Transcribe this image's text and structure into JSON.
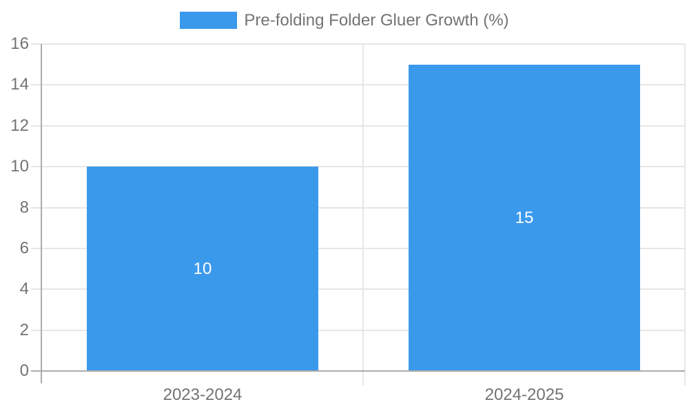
{
  "chart_data": {
    "type": "bar",
    "title": "",
    "xlabel": "",
    "ylabel": "",
    "categories": [
      "2023-2024",
      "2024-2025"
    ],
    "values": [
      10,
      15
    ],
    "data_labels": [
      "10",
      "15"
    ],
    "series_name": "Pre-folding Folder Gluer Growth (%)",
    "ylim": [
      0,
      16
    ],
    "yticks": [
      0,
      2,
      4,
      6,
      8,
      10,
      12,
      14,
      16
    ],
    "grid": true,
    "legend_position": "top",
    "bar_color": "#3b99ec",
    "data_label_color": "#ffffff"
  },
  "legend": {
    "label": "Pre-folding Folder Gluer Growth (%)"
  },
  "colors": {
    "background": "#ffffff",
    "bar": "#3b99ec",
    "grid": "#e6e6e6",
    "axis": "#ababab",
    "text": "#737373",
    "data_label": "#ffffff"
  }
}
